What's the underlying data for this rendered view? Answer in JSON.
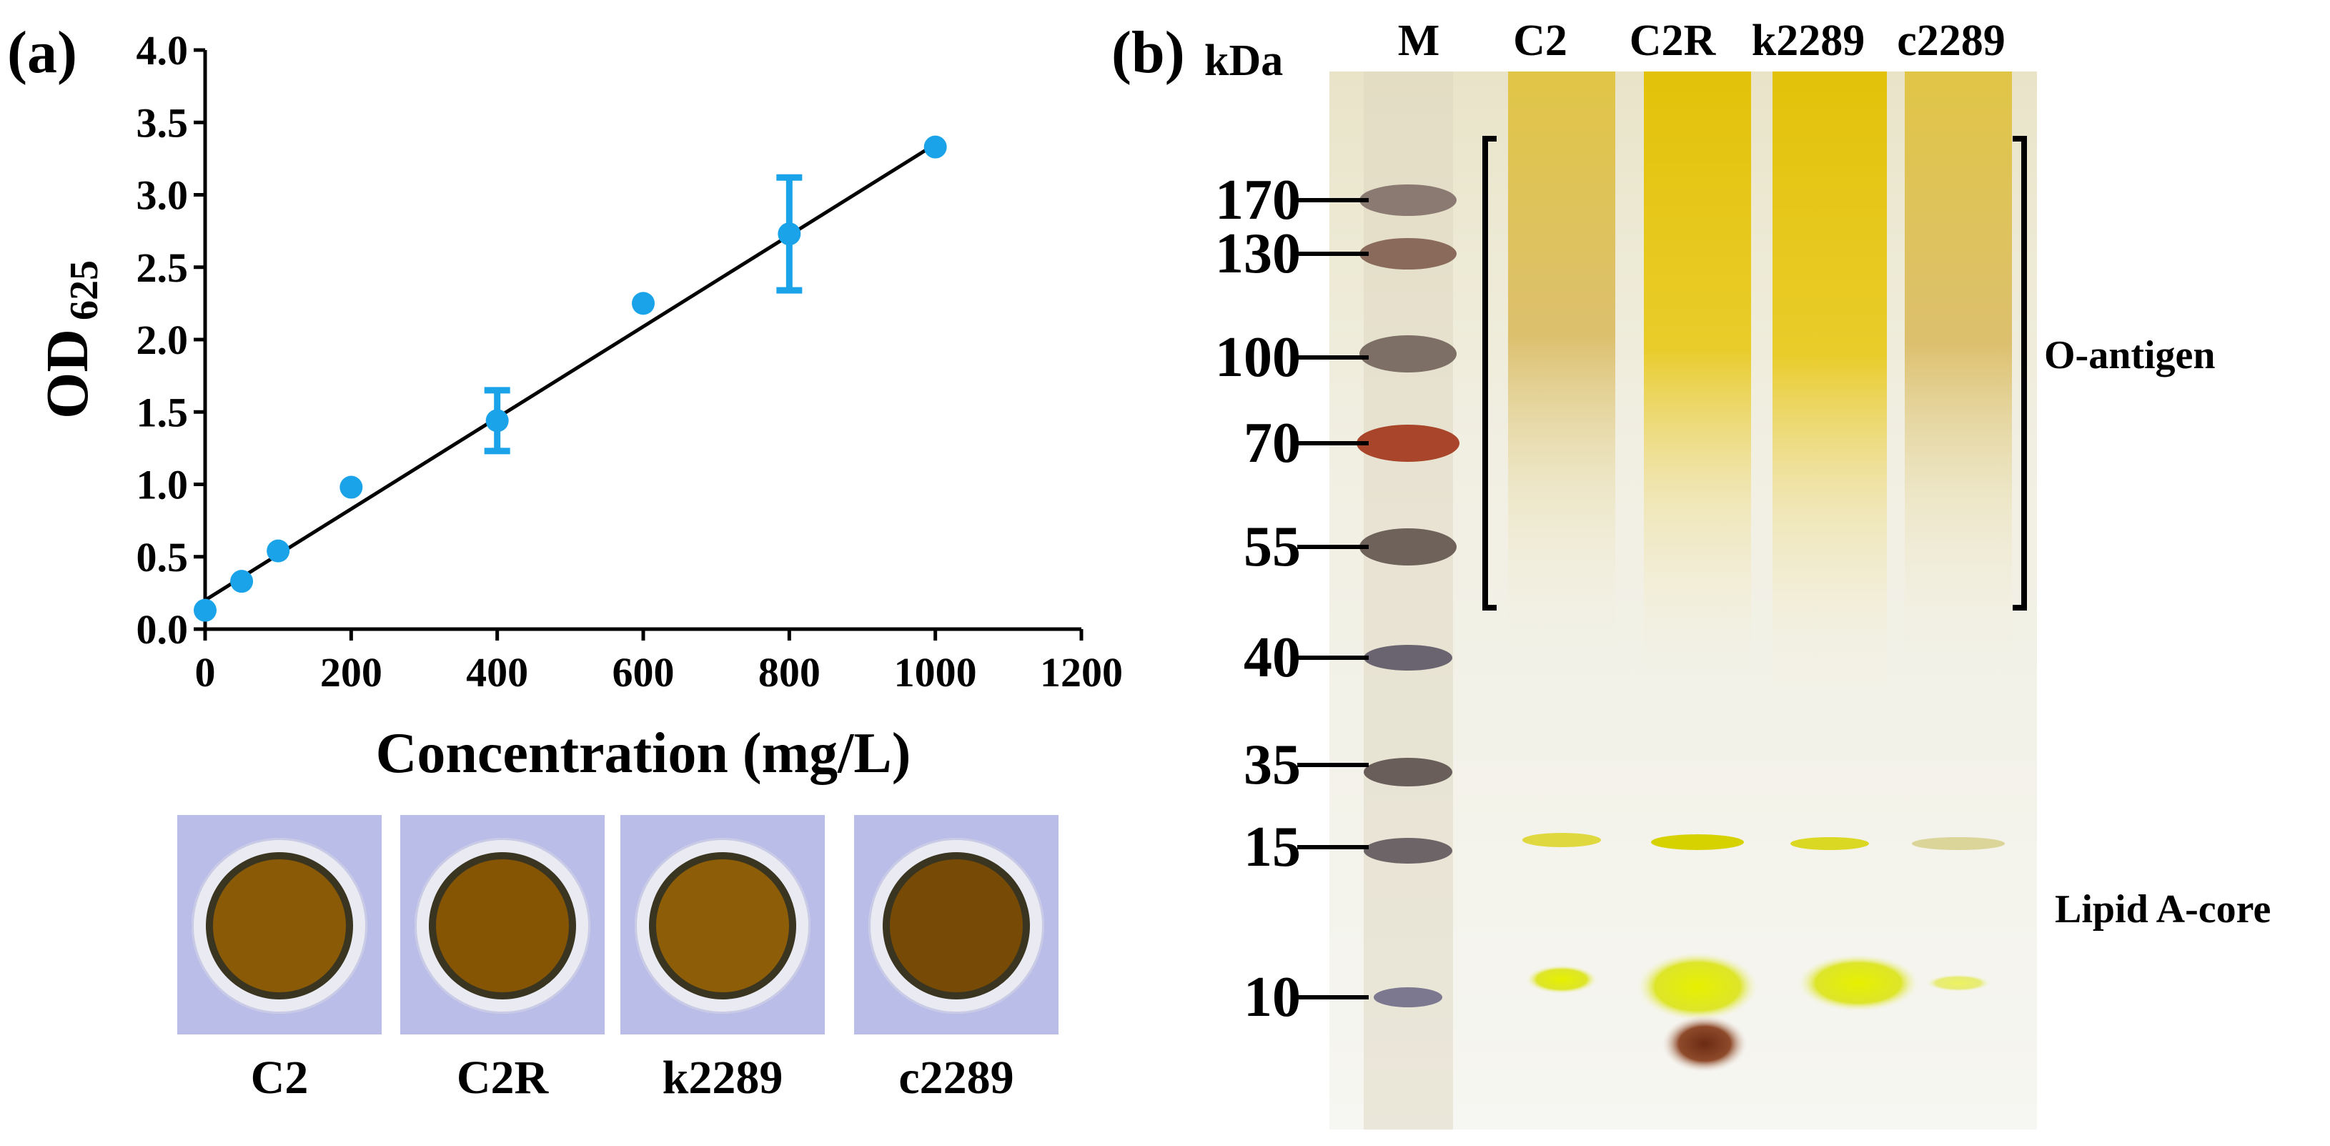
{
  "panel_a_label": "(a)",
  "panel_b_label": "(b)",
  "chart_data": {
    "type": "scatter",
    "fit": "linear",
    "xlabel": "Concentration (mg/L)",
    "ylabel_main": "OD",
    "ylabel_sub": "625",
    "xlim": [
      0,
      1200
    ],
    "ylim": [
      0.0,
      4.0
    ],
    "xticks": [
      "0",
      "200",
      "400",
      "600",
      "800",
      "1000",
      "1200"
    ],
    "yticks": [
      "0.0",
      "0.5",
      "1.0",
      "1.5",
      "2.0",
      "2.5",
      "3.0",
      "3.5",
      "4.0"
    ],
    "x": [
      0,
      50,
      100,
      200,
      400,
      600,
      800,
      1000
    ],
    "y": [
      0.13,
      0.33,
      0.54,
      0.98,
      1.44,
      2.25,
      2.73,
      3.33
    ],
    "yerr": [
      0,
      0,
      0,
      0,
      0.21,
      0,
      0.39,
      0
    ],
    "fit_line": {
      "x": [
        0,
        1000
      ],
      "y": [
        0.2,
        3.35
      ]
    },
    "point_color": "#1aa3e8",
    "line_color": "#000000"
  },
  "wells": [
    {
      "label": "C2",
      "color": "#8a5a06"
    },
    {
      "label": "C2R",
      "color": "#855504"
    },
    {
      "label": "k2289",
      "color": "#8d5d07"
    },
    {
      "label": "c2289",
      "color": "#774b06"
    }
  ],
  "gel": {
    "kda_label": "kDa",
    "lanes": [
      "M",
      "C2",
      "C2R",
      "k2289",
      "c2289"
    ],
    "markers": [
      "170",
      "130",
      "100",
      "70",
      "55",
      "40",
      "35",
      "15",
      "10"
    ],
    "o_antigen_label": "O-antigen",
    "lipid_label": "Lipid A-core",
    "stain_color": "#e8c808"
  }
}
